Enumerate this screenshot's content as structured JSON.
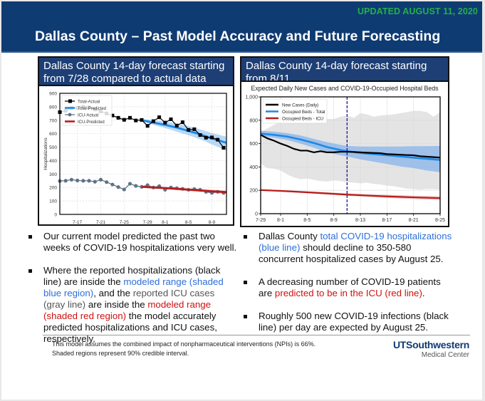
{
  "header": {
    "updated": "UPDATED AUGUST 11, 2020",
    "title": "Dallas County – Past Model Accuracy and Future Forecasting"
  },
  "left_panel": {
    "title": "Dallas County 14-day forecast starting from 7/28 compared to actual data"
  },
  "right_panel": {
    "title": "Dallas County 14-day forecast starting from 8/11"
  },
  "colors": {
    "header_bg": "#0f3b73",
    "updated_green": "#22b04b",
    "total_blue": "#1e88e5",
    "icu_red": "#b71c1c",
    "icu_actual_gray": "#5f7387"
  },
  "chart_data": [
    {
      "type": "line",
      "title": "",
      "xlabel": "",
      "ylabel": "Hospitalizations",
      "ylim": [
        0,
        900
      ],
      "yticks": [
        0,
        100,
        200,
        300,
        400,
        500,
        600,
        700,
        800,
        900
      ],
      "xtick_labels": [
        "7-17",
        "7-21",
        "7-25",
        "7-29",
        "8-1",
        "8-5",
        "8-9"
      ],
      "xtick_day_index": [
        3,
        7,
        11,
        15,
        18,
        22,
        26
      ],
      "x_range_days": [
        0,
        28.5
      ],
      "grid": true,
      "legend": "top-left",
      "legend_entries": [
        "Total-Actual",
        "Total-Predicted",
        "ICU-Actual",
        "ICU-Predicted"
      ],
      "series": [
        {
          "name": "Total-Actual",
          "day_index": [
            0,
            1,
            2,
            3,
            4,
            5,
            6,
            7,
            8,
            9,
            10,
            11,
            12,
            13,
            14,
            15,
            16,
            17,
            18,
            19,
            20,
            21,
            22,
            23,
            24,
            25,
            26,
            27,
            28
          ],
          "values": [
            760,
            770,
            790,
            790,
            800,
            795,
            780,
            765,
            750,
            735,
            718,
            703,
            718,
            698,
            702,
            658,
            693,
            722,
            682,
            707,
            660,
            685,
            628,
            633,
            590,
            570,
            572,
            555,
            495
          ]
        },
        {
          "name": "Total-Predicted",
          "day_index": [
            14,
            16,
            18,
            20,
            22,
            24,
            26,
            28.5
          ],
          "values": [
            700,
            682,
            665,
            645,
            620,
            595,
            565,
            532
          ],
          "band_low": [
            695,
            665,
            642,
            615,
            588,
            558,
            520,
            475
          ],
          "band_high": [
            708,
            700,
            690,
            675,
            655,
            632,
            605,
            578
          ]
        },
        {
          "name": "ICU-Actual",
          "day_index": [
            0,
            1,
            2,
            3,
            4,
            5,
            6,
            7,
            8,
            9,
            10,
            11,
            12,
            13,
            14,
            15,
            16,
            17,
            18,
            19,
            20,
            21,
            22,
            23,
            24,
            25,
            26,
            27,
            28
          ],
          "values": [
            248,
            250,
            258,
            252,
            250,
            250,
            243,
            258,
            240,
            222,
            203,
            185,
            228,
            212,
            205,
            217,
            200,
            210,
            183,
            200,
            195,
            190,
            183,
            188,
            183,
            168,
            160,
            168,
            160
          ]
        },
        {
          "name": "ICU-Predicted",
          "day_index": [
            14,
            16,
            18,
            20,
            22,
            24,
            26,
            28.5
          ],
          "values": [
            205,
            200,
            196,
            190,
            184,
            178,
            172,
            165
          ],
          "band_low": [
            198,
            192,
            186,
            180,
            173,
            166,
            159,
            152
          ],
          "band_high": [
            212,
            208,
            204,
            199,
            194,
            189,
            184,
            178
          ]
        }
      ]
    },
    {
      "type": "line",
      "title": "Expected Daily New Cases and COVID-19-Occupied Hospital Beds",
      "xlabel": "",
      "ylabel": "",
      "ylim": [
        0,
        1000
      ],
      "yticks": [
        0,
        200,
        400,
        600,
        800,
        1000
      ],
      "ytick_labels": [
        "0",
        "200",
        "400",
        "600",
        "800",
        "1,000"
      ],
      "xtick_labels": [
        "7-29",
        "8-1",
        "8-5",
        "8-9",
        "8-13",
        "8-17",
        "8-21",
        "8-25"
      ],
      "xtick_day_index": [
        0,
        3,
        7,
        11,
        15,
        19,
        23,
        27
      ],
      "x_range_days": [
        0,
        27
      ],
      "forecast_start_day_index": 13,
      "forecast_start_label": "8-11",
      "grid": true,
      "legend": "top-left",
      "legend_entries": [
        "New Cases (Daily)",
        "Occupied Beds - Total",
        "Occupied Beds - ICU"
      ],
      "series": [
        {
          "name": "New Cases (Daily)",
          "day_index": [
            0,
            1,
            2,
            3,
            4,
            5,
            6,
            7,
            8,
            9,
            10,
            11,
            12,
            13,
            14,
            15,
            16,
            17,
            18,
            19,
            20,
            21,
            22,
            23,
            24,
            25,
            26,
            27
          ],
          "values": [
            675,
            645,
            625,
            600,
            580,
            555,
            540,
            540,
            525,
            535,
            525,
            525,
            530,
            530,
            528,
            525,
            522,
            520,
            518,
            510,
            508,
            505,
            502,
            500,
            492,
            488,
            484,
            480
          ],
          "band_low": [
            430,
            390,
            385,
            370,
            335,
            310,
            295,
            300,
            290,
            280,
            275,
            285,
            280,
            270,
            265,
            260,
            265,
            255,
            250,
            240,
            235,
            225,
            215,
            210,
            205,
            210,
            210,
            205
          ],
          "band_high": [
            700,
            730,
            760,
            790,
            800,
            795,
            780,
            780,
            790,
            780,
            810,
            810,
            830,
            840,
            820,
            860,
            850,
            830,
            840,
            845,
            850,
            860,
            870,
            880,
            880,
            870,
            830,
            870
          ]
        },
        {
          "name": "Occupied Beds - Total",
          "day_index": [
            0,
            2,
            4,
            6,
            8,
            10,
            12,
            13,
            15,
            17,
            19,
            21,
            23,
            25,
            27
          ],
          "values": [
            685,
            675,
            660,
            635,
            605,
            570,
            545,
            535,
            520,
            510,
            500,
            490,
            480,
            470,
            460
          ],
          "band_low": [
            665,
            650,
            630,
            600,
            565,
            525,
            500,
            490,
            465,
            445,
            425,
            405,
            390,
            370,
            355
          ],
          "band_high": [
            710,
            702,
            690,
            670,
            640,
            612,
            590,
            580,
            575,
            575,
            575,
            575,
            578,
            578,
            580
          ]
        },
        {
          "name": "Occupied Beds - ICU",
          "day_index": [
            0,
            3,
            7,
            11,
            13,
            15,
            19,
            23,
            27
          ],
          "values": [
            202,
            195,
            183,
            170,
            163,
            158,
            148,
            140,
            133
          ],
          "band_low": [
            198,
            188,
            175,
            160,
            153,
            147,
            135,
            125,
            117
          ],
          "band_high": [
            207,
            202,
            192,
            180,
            174,
            170,
            162,
            155,
            150
          ]
        }
      ]
    }
  ],
  "left_bullets": {
    "b1": "Our current model predicted the past two weeks of COVID-19 hospitalizations very well.",
    "b2_p1": "Where the ",
    "b2_p2": "reported hospitalizations (black line)",
    "b2_p3": " are inside the ",
    "b2_p4": "modeled range (shaded blue region)",
    "b2_p5": ", and the ",
    "b2_p6": "reported ICU cases (gray line)",
    "b2_p7": " are inside the ",
    "b2_p8": "modeled range (shaded red region)",
    "b2_p9": " the model accurately predicted hospitalizations and ICU cases, respectively."
  },
  "right_bullets": {
    "b1_p1": "Dallas County ",
    "b1_p2": "total COVID-19 hospitalizations (blue line)",
    "b1_p3": " should decline to 350-580 concurrent hospitalized cases by August 25.",
    "b2_p1": "A decreasing number of COVID-19 patients are ",
    "b2_p2": "predicted to be in the ICU (red line)",
    "b2_p3": ".",
    "b3": "Roughly 500 new COVID-19 infections (black line) per day are expected by August 25."
  },
  "footer": {
    "note1": "This model assumes the combined impact of nonpharmaceutical interventions (NPIs) is 66%.",
    "note2": "Shaded regions represent 90% credible interval.",
    "logo_main": "UTSouthwestern",
    "logo_sub": "Medical Center"
  }
}
